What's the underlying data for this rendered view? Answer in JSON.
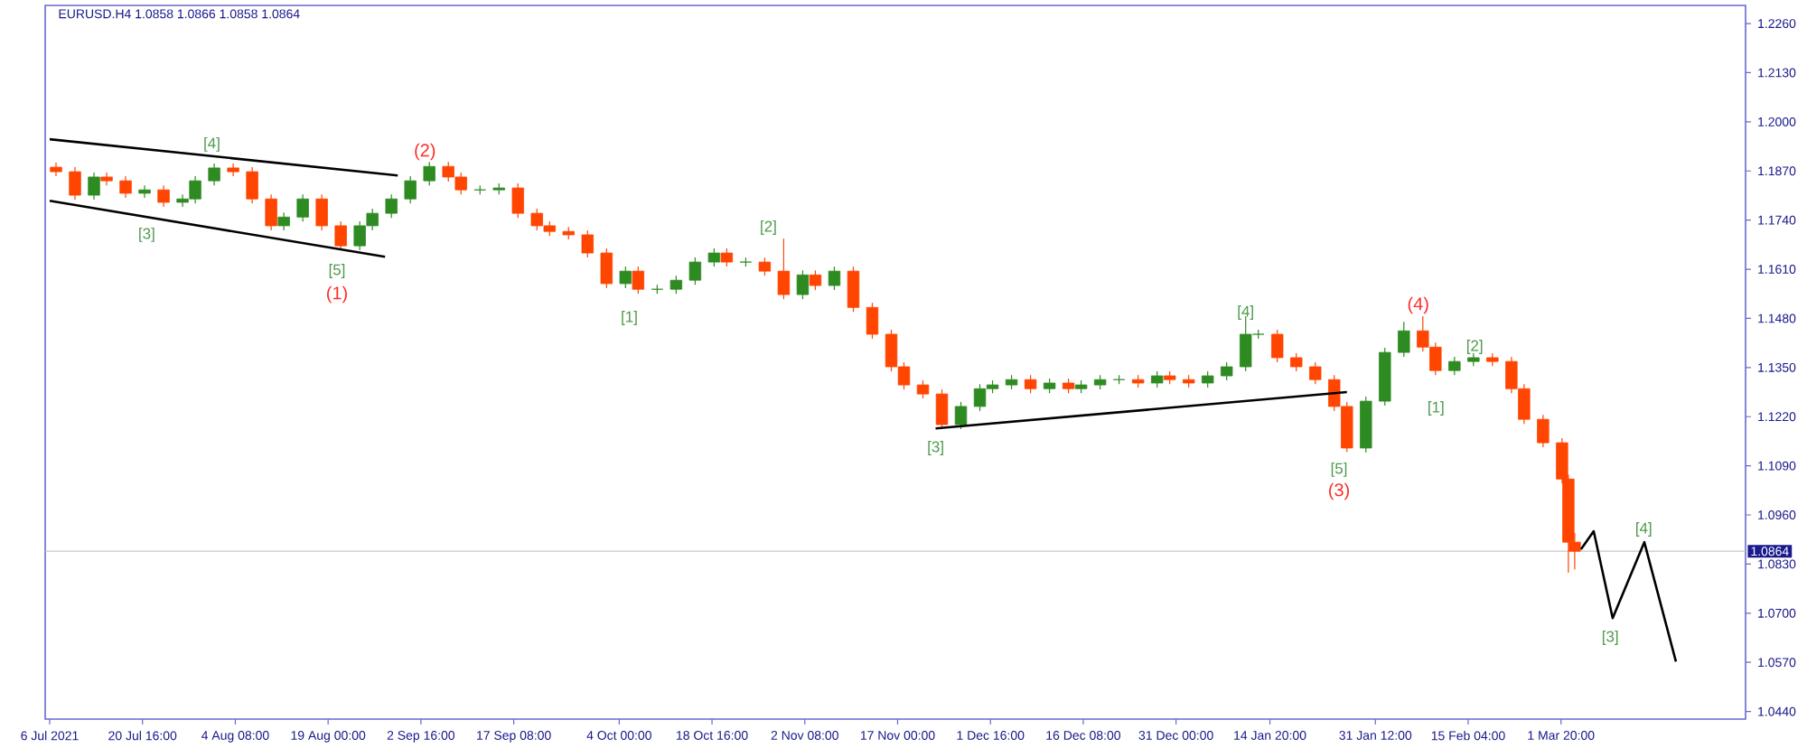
{
  "chart_data": {
    "type": "candlestick",
    "title": "EURUSD.H4  1.0858 1.0866 1.0858 1.0864",
    "xlim": [
      "2021-07-05T07:00",
      "2022-03-31"
    ],
    "ylim": [
      1.042,
      1.2308
    ],
    "xticks": [
      {
        "value": "2021-07-06",
        "label": "6 Jul 2021"
      },
      {
        "value": "2021-07-20T16:00",
        "label": "20 Jul 16:00"
      },
      {
        "value": "2021-08-04T08:00",
        "label": "4 Aug 08:00"
      },
      {
        "value": "2021-08-19T00:00",
        "label": "19 Aug 00:00"
      },
      {
        "value": "2021-09-02T16:00",
        "label": "2 Sep 16:00"
      },
      {
        "value": "2021-09-17T08:00",
        "label": "17 Sep 08:00"
      },
      {
        "value": "2021-10-04T00:00",
        "label": "4 Oct 00:00"
      },
      {
        "value": "2021-10-18T16:00",
        "label": "18 Oct 16:00"
      },
      {
        "value": "2021-11-02T08:00",
        "label": "2 Nov 08:00"
      },
      {
        "value": "2021-11-17T00:00",
        "label": "17 Nov 00:00"
      },
      {
        "value": "2021-12-01T16:00",
        "label": "1 Dec 16:00"
      },
      {
        "value": "2021-12-16T08:00",
        "label": "16 Dec 08:00"
      },
      {
        "value": "2021-12-31T00:00",
        "label": "31 Dec 00:00"
      },
      {
        "value": "2022-01-14T20:00",
        "label": "14 Jan 20:00"
      },
      {
        "value": "2022-01-31T12:00",
        "label": "31 Jan 12:00"
      },
      {
        "value": "2022-02-15T04:00",
        "label": "15 Feb 04:00"
      },
      {
        "value": "2022-03-01T20:00",
        "label": "1 Mar 20:00"
      }
    ],
    "yticks": [
      {
        "value": 1.226,
        "label": "1.2260"
      },
      {
        "value": 1.213,
        "label": "1.2130"
      },
      {
        "value": 1.2,
        "label": "1.2000"
      },
      {
        "value": 1.187,
        "label": "1.1870"
      },
      {
        "value": 1.174,
        "label": "1.1740"
      },
      {
        "value": 1.161,
        "label": "1.1610"
      },
      {
        "value": 1.148,
        "label": "1.1480"
      },
      {
        "value": 1.135,
        "label": "1.1350"
      },
      {
        "value": 1.122,
        "label": "1.1220"
      },
      {
        "value": 1.109,
        "label": "1.1090"
      },
      {
        "value": 1.096,
        "label": "1.0960"
      },
      {
        "value": 1.083,
        "label": "1.0830"
      },
      {
        "value": 1.07,
        "label": "1.0700"
      },
      {
        "value": 1.057,
        "label": "1.0570"
      },
      {
        "value": 1.044,
        "label": "1.0440"
      }
    ],
    "ref_lines": [
      {
        "axis": "y",
        "value": 1.0864,
        "label": "1.0864",
        "color": "#c8c8c8"
      }
    ],
    "series": [
      {
        "x": [
          "2021-07-07",
          "2021-07-10",
          "2021-07-13",
          "2021-07-15",
          "2021-07-18",
          "2021-07-21",
          "2021-07-24",
          "2021-07-27",
          "2021-07-29",
          "2021-08-01",
          "2021-08-04",
          "2021-08-07",
          "2021-08-10",
          "2021-08-12",
          "2021-08-15",
          "2021-08-18",
          "2021-08-21",
          "2021-08-24",
          "2021-08-26",
          "2021-08-29",
          "2021-09-01",
          "2021-09-04",
          "2021-09-07",
          "2021-09-09",
          "2021-09-12",
          "2021-09-15",
          "2021-09-18",
          "2021-09-21",
          "2021-09-23",
          "2021-09-26",
          "2021-09-29",
          "2021-10-02",
          "2021-10-05",
          "2021-10-07",
          "2021-10-10",
          "2021-10-13",
          "2021-10-16",
          "2021-10-19",
          "2021-10-21",
          "2021-10-24",
          "2021-10-27",
          "2021-10-30",
          "2021-11-02",
          "2021-11-04",
          "2021-11-07",
          "2021-11-10",
          "2021-11-13",
          "2021-11-16",
          "2021-11-18",
          "2021-11-21",
          "2021-11-24",
          "2021-11-27",
          "2021-11-30",
          "2021-12-02",
          "2021-12-05",
          "2021-12-08",
          "2021-12-11",
          "2021-12-14",
          "2021-12-16",
          "2021-12-19",
          "2021-12-22",
          "2021-12-25",
          "2021-12-28",
          "2021-12-30",
          "2022-01-02",
          "2022-01-05",
          "2022-01-08",
          "2022-01-11",
          "2022-01-13",
          "2022-01-16",
          "2022-01-19",
          "2022-01-22",
          "2022-01-25",
          "2022-01-27",
          "2022-01-30",
          "2022-02-02",
          "2022-02-05",
          "2022-02-08",
          "2022-02-10",
          "2022-02-13",
          "2022-02-16",
          "2022-02-19",
          "2022-02-22",
          "2022-02-24",
          "2022-02-27",
          "2022-03-02",
          "2022-03-03",
          "2022-03-04"
        ],
        "ohlc": [
          [
            1.188,
            1.1892,
            1.1856,
            1.1868
          ],
          [
            1.1868,
            1.188,
            1.1794,
            1.1806
          ],
          [
            1.1806,
            1.1866,
            1.1794,
            1.1854
          ],
          [
            1.1854,
            1.1866,
            1.1832,
            1.1844
          ],
          [
            1.1844,
            1.1856,
            1.1799,
            1.1811
          ],
          [
            1.1811,
            1.1832,
            1.1799,
            1.182
          ],
          [
            1.182,
            1.1832,
            1.1775,
            1.1787
          ],
          [
            1.1787,
            1.1808,
            1.1775,
            1.1796
          ],
          [
            1.1796,
            1.1856,
            1.1784,
            1.1844
          ],
          [
            1.1844,
            1.189,
            1.1832,
            1.1878
          ],
          [
            1.1878,
            1.189,
            1.1856,
            1.1868
          ],
          [
            1.1868,
            1.188,
            1.1784,
            1.1796
          ],
          [
            1.1796,
            1.1808,
            1.1713,
            1.1725
          ],
          [
            1.1725,
            1.176,
            1.1713,
            1.1748
          ],
          [
            1.1748,
            1.1808,
            1.1736,
            1.1796
          ],
          [
            1.1796,
            1.1808,
            1.1713,
            1.1725
          ],
          [
            1.1725,
            1.1737,
            1.166,
            1.1672
          ],
          [
            1.1672,
            1.1737,
            1.166,
            1.1725
          ],
          [
            1.1725,
            1.177,
            1.1713,
            1.1758
          ],
          [
            1.1758,
            1.1808,
            1.1746,
            1.1796
          ],
          [
            1.1796,
            1.1856,
            1.1784,
            1.1844
          ],
          [
            1.1844,
            1.1894,
            1.1832,
            1.1882
          ],
          [
            1.1882,
            1.1894,
            1.1842,
            1.1854
          ],
          [
            1.1854,
            1.1866,
            1.1808,
            1.182
          ],
          [
            1.182,
            1.1832,
            1.1808,
            1.182
          ],
          [
            1.182,
            1.1837,
            1.1808,
            1.1825
          ],
          [
            1.1825,
            1.1837,
            1.1746,
            1.1758
          ],
          [
            1.1758,
            1.177,
            1.1713,
            1.1725
          ],
          [
            1.1725,
            1.1737,
            1.1698,
            1.171
          ],
          [
            1.171,
            1.1722,
            1.1689,
            1.1701
          ],
          [
            1.1701,
            1.1713,
            1.1641,
            1.1653
          ],
          [
            1.1653,
            1.1665,
            1.156,
            1.1572
          ],
          [
            1.1572,
            1.1617,
            1.156,
            1.1605
          ],
          [
            1.1605,
            1.1617,
            1.1545,
            1.1557
          ],
          [
            1.1557,
            1.1569,
            1.1545,
            1.1557
          ],
          [
            1.1557,
            1.1593,
            1.1545,
            1.1581
          ],
          [
            1.1581,
            1.1641,
            1.1569,
            1.1629
          ],
          [
            1.1629,
            1.1665,
            1.1617,
            1.1653
          ],
          [
            1.1653,
            1.1665,
            1.1617,
            1.1629
          ],
          [
            1.1629,
            1.1641,
            1.1617,
            1.1629
          ],
          [
            1.1629,
            1.1641,
            1.1593,
            1.1605
          ],
          [
            1.1605,
            1.1691,
            1.1531,
            1.1543
          ],
          [
            1.1543,
            1.1607,
            1.1531,
            1.1595
          ],
          [
            1.1595,
            1.1607,
            1.1555,
            1.1567
          ],
          [
            1.1567,
            1.1617,
            1.1555,
            1.1605
          ],
          [
            1.1605,
            1.1617,
            1.1497,
            1.1509
          ],
          [
            1.1509,
            1.1521,
            1.1426,
            1.1438
          ],
          [
            1.1438,
            1.145,
            1.134,
            1.1352
          ],
          [
            1.1352,
            1.1364,
            1.1292,
            1.1304
          ],
          [
            1.1304,
            1.1316,
            1.1268,
            1.128
          ],
          [
            1.128,
            1.1292,
            1.1189,
            1.1199
          ],
          [
            1.1199,
            1.1259,
            1.1187,
            1.1247
          ],
          [
            1.1247,
            1.1306,
            1.1235,
            1.1294
          ],
          [
            1.1294,
            1.1316,
            1.1282,
            1.1304
          ],
          [
            1.1304,
            1.133,
            1.1292,
            1.1318
          ],
          [
            1.1318,
            1.133,
            1.1282,
            1.1294
          ],
          [
            1.1294,
            1.1321,
            1.1282,
            1.1309
          ],
          [
            1.1309,
            1.1321,
            1.1282,
            1.1294
          ],
          [
            1.1294,
            1.1316,
            1.1282,
            1.1304
          ],
          [
            1.1304,
            1.133,
            1.1292,
            1.1318
          ],
          [
            1.1318,
            1.133,
            1.1306,
            1.1318
          ],
          [
            1.1318,
            1.133,
            1.1297,
            1.1309
          ],
          [
            1.1309,
            1.134,
            1.1297,
            1.1328
          ],
          [
            1.1328,
            1.134,
            1.1306,
            1.1318
          ],
          [
            1.1318,
            1.133,
            1.1297,
            1.1309
          ],
          [
            1.1309,
            1.134,
            1.1297,
            1.1328
          ],
          [
            1.1328,
            1.1364,
            1.1316,
            1.1352
          ],
          [
            1.1352,
            1.1486,
            1.134,
            1.1438
          ],
          [
            1.1438,
            1.145,
            1.1426,
            1.1438
          ],
          [
            1.1438,
            1.145,
            1.1364,
            1.1376
          ],
          [
            1.1376,
            1.1388,
            1.134,
            1.1352
          ],
          [
            1.1352,
            1.1364,
            1.1306,
            1.1318
          ],
          [
            1.1318,
            1.133,
            1.1235,
            1.1247
          ],
          [
            1.1247,
            1.1259,
            1.1127,
            1.1137
          ],
          [
            1.1137,
            1.1273,
            1.1125,
            1.1261
          ],
          [
            1.1261,
            1.1402,
            1.1249,
            1.139
          ],
          [
            1.139,
            1.1471,
            1.1378,
            1.1447
          ],
          [
            1.1447,
            1.1486,
            1.1392,
            1.1404
          ],
          [
            1.1404,
            1.1416,
            1.133,
            1.1342
          ],
          [
            1.1342,
            1.1378,
            1.133,
            1.1366
          ],
          [
            1.1366,
            1.1388,
            1.1354,
            1.1376
          ],
          [
            1.1376,
            1.1388,
            1.1354,
            1.1366
          ],
          [
            1.1366,
            1.1378,
            1.1282,
            1.1294
          ],
          [
            1.1294,
            1.1306,
            1.1201,
            1.1213
          ],
          [
            1.1213,
            1.1225,
            1.1139,
            1.1151
          ],
          [
            1.1151,
            1.1163,
            1.1043,
            1.1055
          ],
          [
            1.1055,
            1.1067,
            1.0807,
            1.0888
          ],
          [
            1.0888,
            1.0912,
            1.0816,
            1.0864
          ]
        ]
      },
      {
        "type": "line",
        "color": "#000000",
        "x": [
          "2021-07-06",
          "2021-08-30"
        ],
        "values": [
          1.1954,
          1.1858
        ]
      },
      {
        "type": "line",
        "color": "#000000",
        "x": [
          "2021-07-06",
          "2021-08-28"
        ],
        "values": [
          1.1791,
          1.1643
        ]
      },
      {
        "type": "line",
        "color": "#000000",
        "x": [
          "2021-11-23",
          "2022-01-27"
        ],
        "values": [
          1.1189,
          1.1285
        ]
      },
      {
        "type": "line",
        "color": "#000000",
        "x": [
          "2022-03-05",
          "2022-03-07",
          "2022-03-10",
          "2022-03-15",
          "2022-03-20"
        ],
        "values": [
          1.0869,
          1.0917,
          1.0687,
          1.0888,
          1.0572
        ]
      }
    ],
    "annotations": [
      "[4]",
      "[3]",
      "[5]",
      "(1)",
      "(2)",
      "[1]",
      "[2]",
      "[3]",
      "[4]",
      "[5]",
      "(3)",
      "(4)",
      "[2]",
      "[1]",
      "[4]",
      "[3]"
    ]
  }
}
